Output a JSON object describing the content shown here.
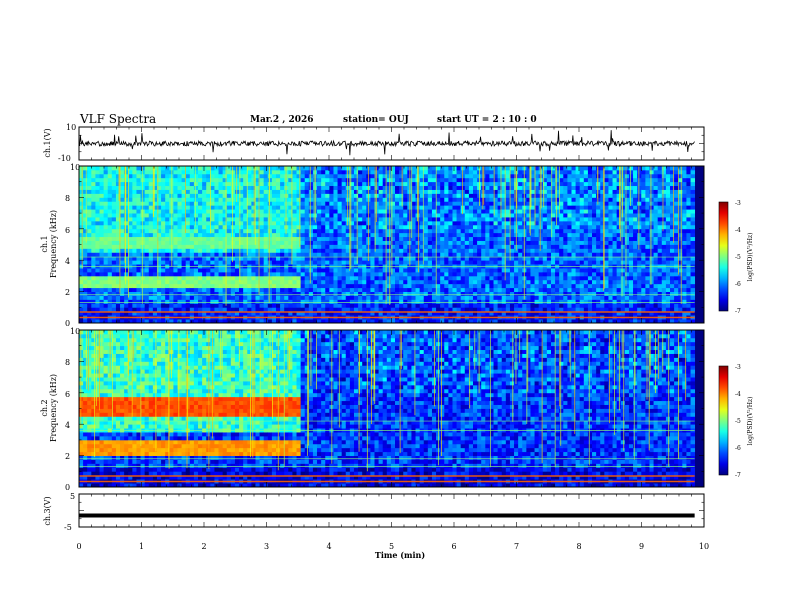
{
  "header": {
    "title": "VLF Spectra",
    "date": "Mar.2  , 2026",
    "station": "station= OUJ",
    "start": "start  UT  =   2  : 10 : 0"
  },
  "chart_data": {
    "type": "heatmap",
    "x_axis": {
      "label": "Time  (min)",
      "range": [
        0,
        10
      ],
      "ticks": [
        "0",
        "1",
        "2",
        "3",
        "4",
        "5",
        "6",
        "7",
        "8",
        "9",
        "10"
      ],
      "data_end_min": 9.85
    },
    "panels": [
      {
        "id": "ch1_waveform",
        "type": "line",
        "ylabel": "ch.1(V)",
        "ylim": [
          -10,
          10
        ],
        "ytick_labels": [
          "10",
          "-10"
        ],
        "baseline_V": 0,
        "noise_amplitude_V": 1.5
      },
      {
        "id": "ch1_spectrogram",
        "type": "heatmap",
        "ylabel_line1": "ch.1",
        "ylabel_line2": "Frequency  (kHz)",
        "ylim_kHz": [
          0,
          10
        ],
        "ytick_labels": [
          "0",
          "2",
          "4",
          "6",
          "8",
          "10"
        ],
        "background_log_psd": -6.1,
        "colorbar": {
          "label": "log(PSD)(V²/Hz)",
          "range": [
            -7,
            -3
          ],
          "tick_labels": [
            "-3",
            "-4",
            "-5",
            "-6",
            "-7"
          ]
        },
        "bands": [
          {
            "f_kHz": 2.6,
            "width_kHz": 0.4,
            "t_end_min": 3.55,
            "level": -5.0
          },
          {
            "f_kHz": 5.1,
            "width_kHz": 0.4,
            "t_end_min": 3.55,
            "level": -5.1
          }
        ],
        "emission_region": {
          "t_end_min": 3.55,
          "f_low_kHz": 4.5,
          "level": -5.5
        }
      },
      {
        "id": "ch2_spectrogram",
        "type": "heatmap",
        "ylabel_line1": "ch.2",
        "ylabel_line2": "Frequency  (kHz)",
        "ylim_kHz": [
          0,
          10
        ],
        "ytick_labels": [
          "0",
          "2",
          "4",
          "6",
          "8",
          "10"
        ],
        "background_log_psd": -6.3,
        "colorbar": {
          "label": "log(PSD)(V²/Hz)",
          "range": [
            -7,
            -3
          ],
          "tick_labels": [
            "-3",
            "-4",
            "-5",
            "-6",
            "-7"
          ]
        },
        "bands": [
          {
            "f_kHz": 2.6,
            "width_kHz": 0.5,
            "t_end_min": 3.55,
            "level": -4.1
          },
          {
            "f_kHz": 5.1,
            "width_kHz": 0.6,
            "t_end_min": 3.55,
            "level": -3.8
          }
        ],
        "emission_region": {
          "t_end_min": 3.55,
          "f_low_kHz": 3.6,
          "level": -5.3
        }
      },
      {
        "id": "ch3_waveform",
        "type": "line",
        "ylabel": "ch.3(V)",
        "ylim": [
          -5,
          5
        ],
        "ytick_labels": [
          "5",
          "-5"
        ],
        "baseline_V": -1.5
      }
    ]
  }
}
